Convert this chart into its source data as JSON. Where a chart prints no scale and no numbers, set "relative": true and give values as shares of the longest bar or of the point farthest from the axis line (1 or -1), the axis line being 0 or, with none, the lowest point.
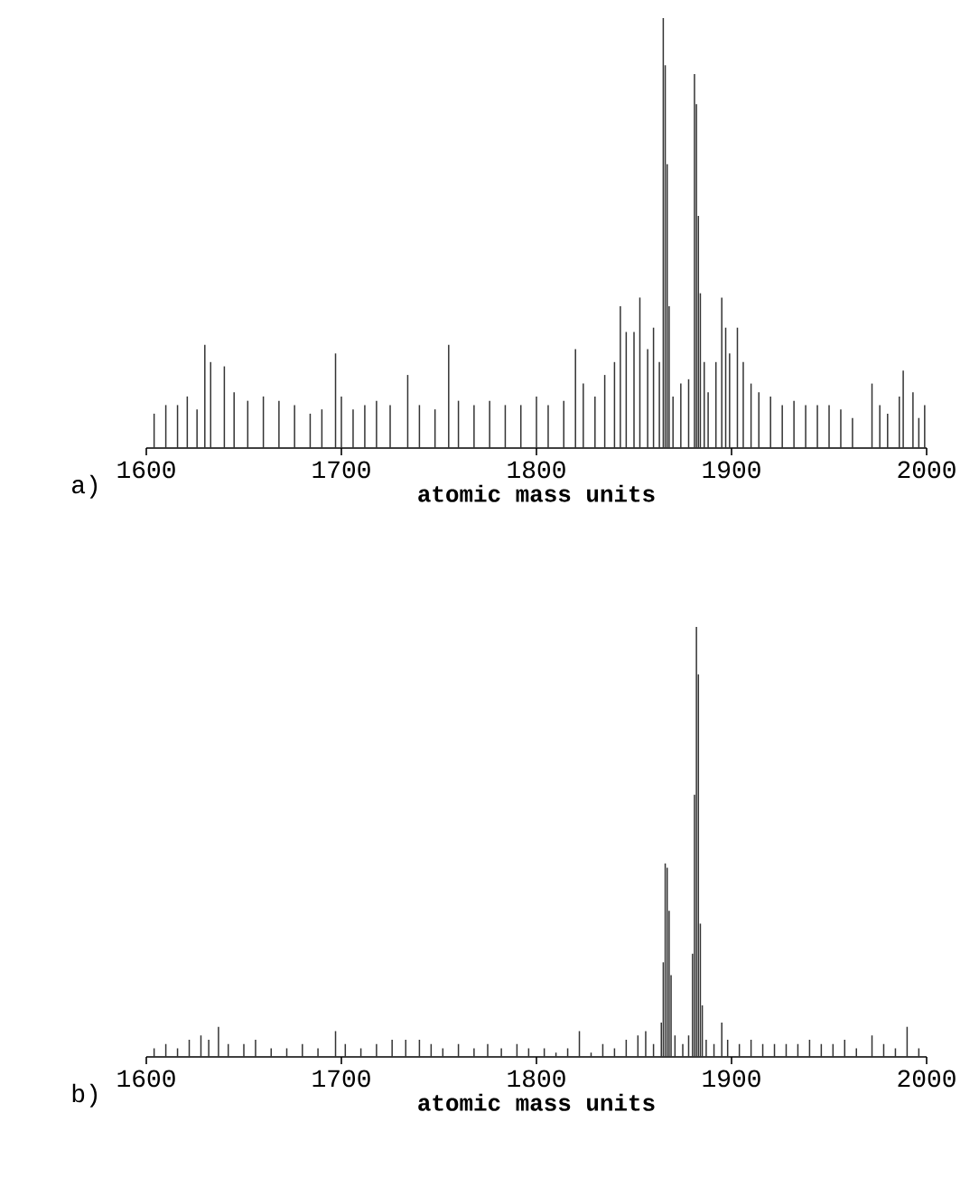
{
  "chart_data": [
    {
      "type": "bar",
      "relative": true,
      "color": "#333333",
      "xlim": [
        1600,
        2000
      ],
      "xticks": [
        {
          "value": 1600,
          "label": "1600"
        },
        {
          "value": 1700,
          "label": "1700"
        },
        {
          "value": 1800,
          "label": "1800"
        },
        {
          "value": 1900,
          "label": "1900"
        },
        {
          "value": 2000,
          "label": "2000"
        }
      ],
      "xlabel": "atomic mass units",
      "annotations": [
        "a)"
      ],
      "x": [
        1604,
        1610,
        1616,
        1621,
        1626,
        1630,
        1633,
        1640,
        1645,
        1652,
        1660,
        1668,
        1676,
        1684,
        1690,
        1697,
        1700,
        1706,
        1712,
        1718,
        1725,
        1734,
        1740,
        1748,
        1755,
        1760,
        1768,
        1776,
        1784,
        1792,
        1800,
        1806,
        1814,
        1820,
        1824,
        1830,
        1835,
        1840,
        1843,
        1846,
        1850,
        1853,
        1857,
        1860,
        1863,
        1865,
        1866,
        1867,
        1868,
        1870,
        1874,
        1878,
        1881,
        1882,
        1883,
        1884,
        1886,
        1888,
        1892,
        1895,
        1897,
        1899,
        1903,
        1906,
        1910,
        1914,
        1920,
        1926,
        1932,
        1938,
        1944,
        1950,
        1956,
        1962,
        1972,
        1976,
        1980,
        1986,
        1988,
        1993,
        1996,
        1999
      ],
      "values": [
        0.08,
        0.1,
        0.1,
        0.12,
        0.09,
        0.24,
        0.2,
        0.19,
        0.13,
        0.11,
        0.12,
        0.11,
        0.1,
        0.08,
        0.09,
        0.22,
        0.12,
        0.09,
        0.1,
        0.11,
        0.1,
        0.17,
        0.1,
        0.09,
        0.24,
        0.11,
        0.1,
        0.11,
        0.1,
        0.1,
        0.12,
        0.1,
        0.11,
        0.23,
        0.15,
        0.12,
        0.17,
        0.2,
        0.33,
        0.27,
        0.27,
        0.35,
        0.23,
        0.28,
        0.2,
        1.0,
        0.89,
        0.66,
        0.33,
        0.12,
        0.15,
        0.16,
        0.87,
        0.8,
        0.54,
        0.36,
        0.2,
        0.13,
        0.2,
        0.35,
        0.28,
        0.22,
        0.28,
        0.2,
        0.15,
        0.13,
        0.12,
        0.1,
        0.11,
        0.1,
        0.1,
        0.1,
        0.09,
        0.07,
        0.15,
        0.1,
        0.08,
        0.12,
        0.18,
        0.13,
        0.07,
        0.1
      ]
    },
    {
      "type": "bar",
      "relative": true,
      "color": "#333333",
      "xlim": [
        1600,
        2000
      ],
      "xticks": [
        {
          "value": 1600,
          "label": "1600"
        },
        {
          "value": 1700,
          "label": "1700"
        },
        {
          "value": 1800,
          "label": "1800"
        },
        {
          "value": 1900,
          "label": "1900"
        },
        {
          "value": 2000,
          "label": "2000"
        }
      ],
      "xlabel": "atomic mass units",
      "annotations": [
        "b)"
      ],
      "x": [
        1604,
        1610,
        1616,
        1622,
        1628,
        1632,
        1637,
        1642,
        1650,
        1656,
        1664,
        1672,
        1680,
        1688,
        1697,
        1702,
        1710,
        1718,
        1726,
        1733,
        1740,
        1746,
        1752,
        1760,
        1768,
        1775,
        1782,
        1790,
        1796,
        1804,
        1810,
        1816,
        1822,
        1828,
        1834,
        1840,
        1846,
        1852,
        1856,
        1860,
        1864,
        1865,
        1866,
        1867,
        1868,
        1869,
        1871,
        1875,
        1878,
        1880,
        1881,
        1882,
        1883,
        1884,
        1885,
        1887,
        1891,
        1895,
        1898,
        1904,
        1910,
        1916,
        1922,
        1928,
        1934,
        1940,
        1946,
        1952,
        1958,
        1964,
        1972,
        1978,
        1984,
        1990,
        1996
      ],
      "values": [
        0.02,
        0.03,
        0.02,
        0.04,
        0.05,
        0.04,
        0.07,
        0.03,
        0.03,
        0.04,
        0.02,
        0.02,
        0.03,
        0.02,
        0.06,
        0.03,
        0.02,
        0.03,
        0.04,
        0.04,
        0.04,
        0.03,
        0.02,
        0.03,
        0.02,
        0.03,
        0.02,
        0.03,
        0.02,
        0.02,
        0.01,
        0.02,
        0.06,
        0.01,
        0.03,
        0.02,
        0.04,
        0.05,
        0.06,
        0.03,
        0.08,
        0.22,
        0.45,
        0.44,
        0.34,
        0.19,
        0.05,
        0.03,
        0.05,
        0.24,
        0.61,
        1.0,
        0.89,
        0.31,
        0.12,
        0.04,
        0.03,
        0.08,
        0.04,
        0.03,
        0.04,
        0.03,
        0.03,
        0.03,
        0.03,
        0.04,
        0.03,
        0.03,
        0.04,
        0.02,
        0.05,
        0.03,
        0.02,
        0.07,
        0.02
      ]
    }
  ]
}
